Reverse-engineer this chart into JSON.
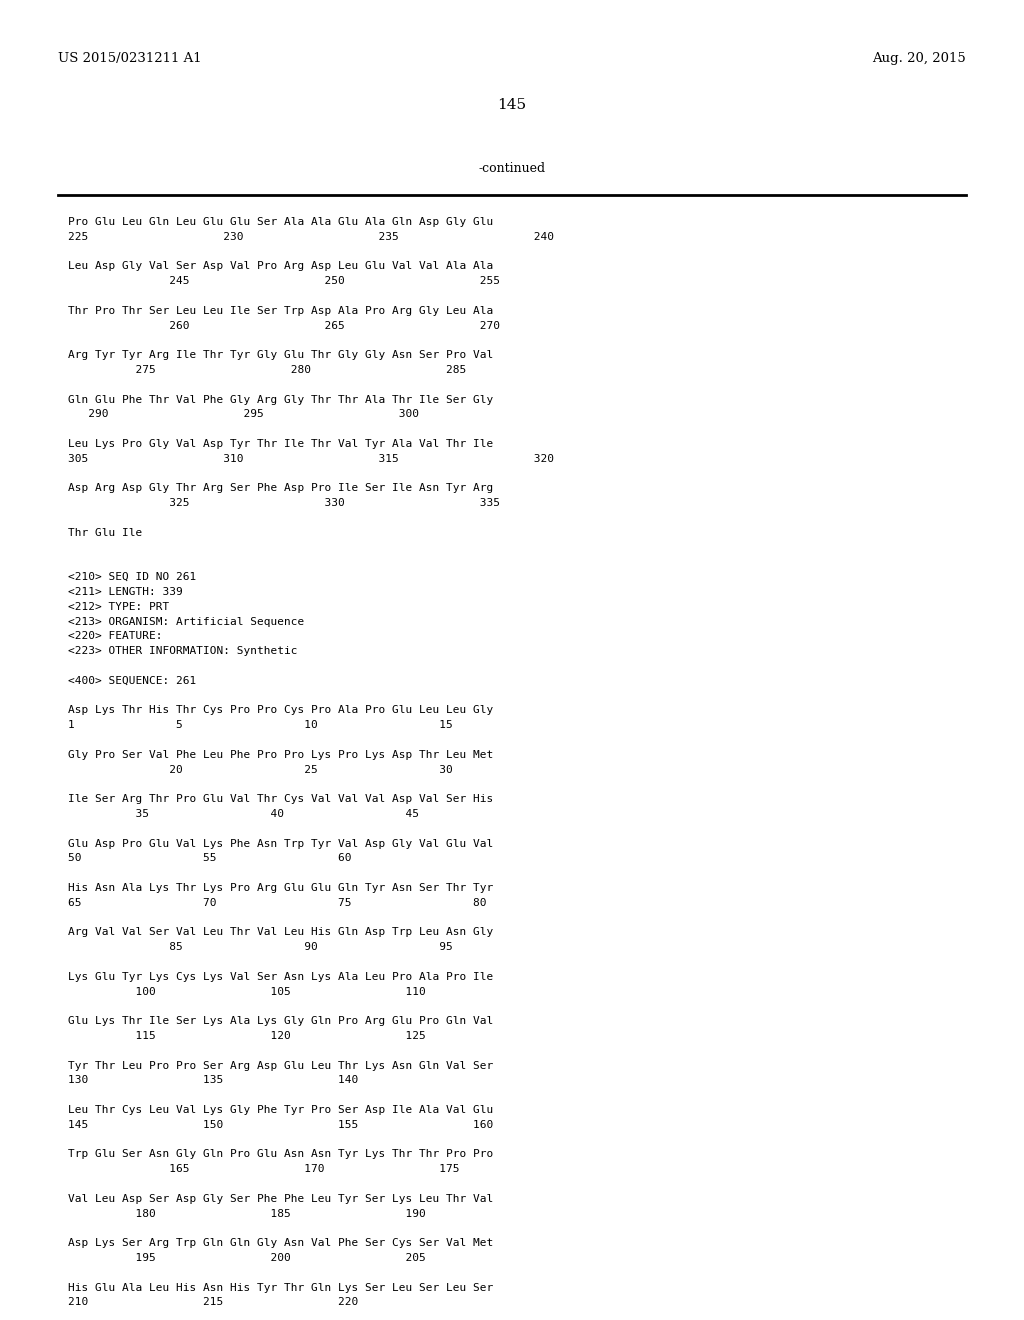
{
  "header_left": "US 2015/0231211 A1",
  "header_right": "Aug. 20, 2015",
  "page_number": "145",
  "continued_label": "-continued",
  "background_color": "#ffffff",
  "text_color": "#000000",
  "lines": [
    "Pro Glu Leu Gln Leu Glu Glu Ser Ala Ala Glu Ala Gln Asp Gly Glu",
    "225                    230                    235                    240",
    "",
    "Leu Asp Gly Val Ser Asp Val Pro Arg Asp Leu Glu Val Val Ala Ala",
    "               245                    250                    255",
    "",
    "Thr Pro Thr Ser Leu Leu Ile Ser Trp Asp Ala Pro Arg Gly Leu Ala",
    "               260                    265                    270",
    "",
    "Arg Tyr Tyr Arg Ile Thr Tyr Gly Glu Thr Gly Gly Asn Ser Pro Val",
    "          275                    280                    285",
    "",
    "Gln Glu Phe Thr Val Phe Gly Arg Gly Thr Thr Ala Thr Ile Ser Gly",
    "   290                    295                    300",
    "",
    "Leu Lys Pro Gly Val Asp Tyr Thr Ile Thr Val Tyr Ala Val Thr Ile",
    "305                    310                    315                    320",
    "",
    "Asp Arg Asp Gly Thr Arg Ser Phe Asp Pro Ile Ser Ile Asn Tyr Arg",
    "               325                    330                    335",
    "",
    "Thr Glu Ile",
    "",
    "",
    "<210> SEQ ID NO 261",
    "<211> LENGTH: 339",
    "<212> TYPE: PRT",
    "<213> ORGANISM: Artificial Sequence",
    "<220> FEATURE:",
    "<223> OTHER INFORMATION: Synthetic",
    "",
    "<400> SEQUENCE: 261",
    "",
    "Asp Lys Thr His Thr Cys Pro Pro Cys Pro Ala Pro Glu Leu Leu Gly",
    "1               5                  10                  15",
    "",
    "Gly Pro Ser Val Phe Leu Phe Pro Pro Lys Pro Lys Asp Thr Leu Met",
    "               20                  25                  30",
    "",
    "Ile Ser Arg Thr Pro Glu Val Thr Cys Val Val Val Asp Val Ser His",
    "          35                  40                  45",
    "",
    "Glu Asp Pro Glu Val Lys Phe Asn Trp Tyr Val Asp Gly Val Glu Val",
    "50                  55                  60",
    "",
    "His Asn Ala Lys Thr Lys Pro Arg Glu Glu Gln Tyr Asn Ser Thr Tyr",
    "65                  70                  75                  80",
    "",
    "Arg Val Val Ser Val Leu Thr Val Leu His Gln Asp Trp Leu Asn Gly",
    "               85                  90                  95",
    "",
    "Lys Glu Tyr Lys Cys Lys Val Ser Asn Lys Ala Leu Pro Ala Pro Ile",
    "          100                 105                 110",
    "",
    "Glu Lys Thr Ile Ser Lys Ala Lys Gly Gln Pro Arg Glu Pro Gln Val",
    "          115                 120                 125",
    "",
    "Tyr Thr Leu Pro Pro Ser Arg Asp Glu Leu Thr Lys Asn Gln Val Ser",
    "130                 135                 140",
    "",
    "Leu Thr Cys Leu Val Lys Gly Phe Tyr Pro Ser Asp Ile Ala Val Glu",
    "145                 150                 155                 160",
    "",
    "Trp Glu Ser Asn Gly Gln Pro Glu Asn Asn Tyr Lys Thr Thr Pro Pro",
    "               165                 170                 175",
    "",
    "Val Leu Asp Ser Asp Gly Ser Phe Phe Leu Tyr Ser Lys Leu Thr Val",
    "          180                 185                 190",
    "",
    "Asp Lys Ser Arg Trp Gln Gln Gly Asn Val Phe Ser Cys Ser Val Met",
    "          195                 200                 205",
    "",
    "His Glu Ala Leu His Asn His Tyr Thr Gln Lys Ser Leu Ser Leu Ser",
    "210                 215                 220"
  ]
}
